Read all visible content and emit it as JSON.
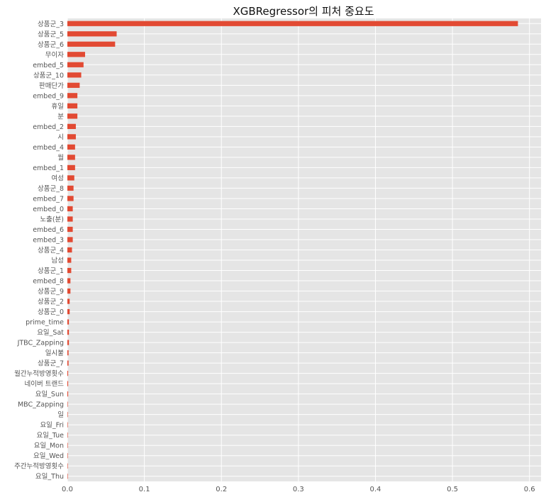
{
  "chart_data": {
    "type": "bar",
    "orientation": "horizontal",
    "title": "XGBRegressor의 피처 중요도",
    "xlabel": "",
    "ylabel": "",
    "xlim": [
      0,
      0.615
    ],
    "x_ticks": [
      0.0,
      0.1,
      0.2,
      0.3,
      0.4,
      0.5,
      0.6
    ],
    "x_tick_labels": [
      "0.0",
      "0.1",
      "0.2",
      "0.3",
      "0.4",
      "0.5",
      "0.6"
    ],
    "grid": true,
    "legend": false,
    "bar_color": "#E24A33",
    "background_color": "#E5E5E5",
    "categories": [
      "상품군_3",
      "상품군_5",
      "상품군_6",
      "무이자",
      "embed_5",
      "상품군_10",
      "판매단가",
      "embed_9",
      "휴일",
      "분",
      "embed_2",
      "시",
      "embed_4",
      "월",
      "embed_1",
      "여성",
      "상품군_8",
      "embed_7",
      "embed_0",
      "노출(분)",
      "embed_6",
      "embed_3",
      "상품군_4",
      "남성",
      "상품군_1",
      "embed_8",
      "상품군_9",
      "상품군_2",
      "상품군_0",
      "prime_time",
      "요일_Sat",
      "JTBC_Zapping",
      "일시불",
      "상품군_7",
      "월간누적방영횟수",
      "네이버 트랜드",
      "요일_Sun",
      "MBC_Zapping",
      "일",
      "요일_Fri",
      "요일_Tue",
      "요일_Mon",
      "요일_Wed",
      "주간누적방영횟수",
      "요일_Thu"
    ],
    "values": [
      0.585,
      0.064,
      0.062,
      0.023,
      0.021,
      0.018,
      0.016,
      0.013,
      0.013,
      0.013,
      0.011,
      0.011,
      0.01,
      0.01,
      0.01,
      0.009,
      0.008,
      0.008,
      0.007,
      0.007,
      0.007,
      0.007,
      0.006,
      0.005,
      0.005,
      0.004,
      0.004,
      0.003,
      0.003,
      0.002,
      0.002,
      0.002,
      0.0015,
      0.0015,
      0.001,
      0.001,
      0.001,
      0.0004,
      0.0003,
      0.0002,
      0.0002,
      0.0001,
      0.0001,
      0.0001,
      0.0001
    ]
  }
}
